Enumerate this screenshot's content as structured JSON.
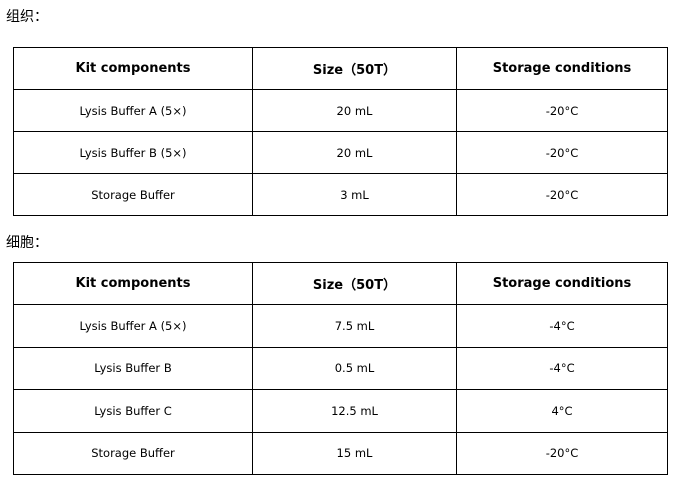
{
  "sections": [
    {
      "label": "组织：",
      "table": {
        "header": [
          "Kit components",
          "Size（50T）",
          "Storage conditions"
        ],
        "rows": [
          [
            "Lysis Buffer A (5×)",
            "20 mL",
            "-20°C"
          ],
          [
            "Lysis Buffer B (5×)",
            "20 mL",
            "-20°C"
          ],
          [
            "Storage Buffer",
            "3 mL",
            "-20°C"
          ]
        ]
      }
    },
    {
      "label": "细胞：",
      "table": {
        "header": [
          "Kit components",
          "Size（50T）",
          "Storage conditions"
        ],
        "rows": [
          [
            "Lysis Buffer A (5×)",
            "7.5 mL",
            "-4°C"
          ],
          [
            "Lysis Buffer B",
            "0.5 mL",
            "-4°C"
          ],
          [
            "Lysis Buffer C",
            "12.5 mL",
            "4°C"
          ],
          [
            "Storage Buffer",
            "15 mL",
            "-20°C"
          ]
        ]
      }
    }
  ]
}
